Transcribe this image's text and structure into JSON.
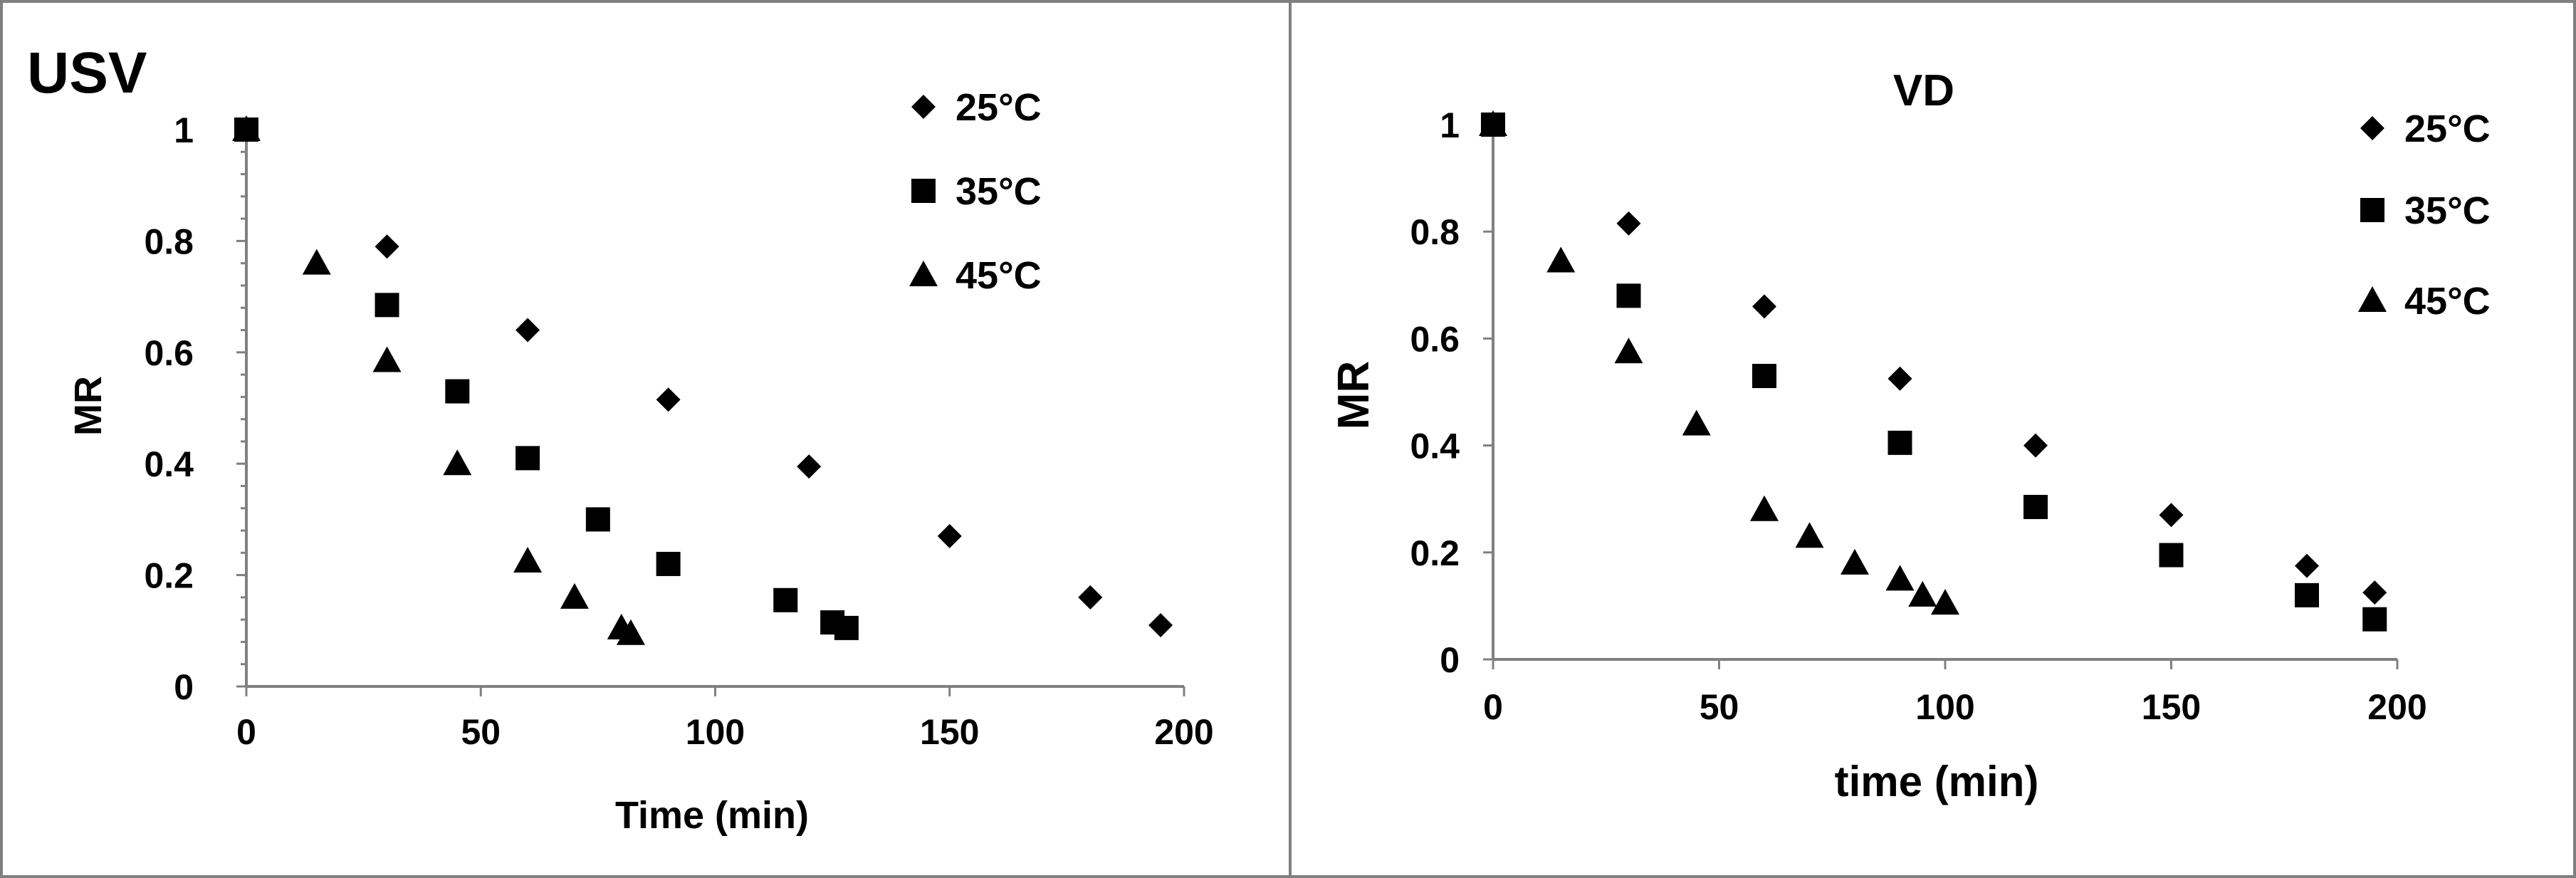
{
  "chart_data": [
    {
      "type": "scatter",
      "title": "USV",
      "xlabel": "Time (min)",
      "ylabel": "MR",
      "xlim": [
        0,
        200
      ],
      "ylim": [
        0,
        1
      ],
      "x_ticks": [
        "0",
        "50",
        "100",
        "150",
        "200"
      ],
      "y_ticks": [
        "0",
        "0.2",
        "0.4",
        "0.6",
        "0.8",
        "1"
      ],
      "grid": false,
      "legend_position": "top-right",
      "series": [
        {
          "name": "25°C",
          "marker": "diamond",
          "x": [
            0,
            30,
            60,
            90,
            120,
            150,
            180,
            195
          ],
          "y": [
            1.0,
            0.79,
            0.64,
            0.515,
            0.395,
            0.27,
            0.16,
            0.11
          ]
        },
        {
          "name": "35°C",
          "marker": "square",
          "x": [
            0,
            30,
            45,
            60,
            75,
            90,
            115,
            125,
            128
          ],
          "y": [
            1.0,
            0.685,
            0.53,
            0.41,
            0.3,
            0.22,
            0.155,
            0.115,
            0.105
          ]
        },
        {
          "name": "45°C",
          "marker": "triangle",
          "x": [
            0,
            15,
            30,
            45,
            60,
            70,
            80,
            82
          ],
          "y": [
            1.0,
            0.76,
            0.585,
            0.4,
            0.225,
            0.16,
            0.105,
            0.095
          ]
        }
      ]
    },
    {
      "type": "scatter",
      "title": "VD",
      "xlabel": "time (min)",
      "ylabel": "MR",
      "xlim": [
        0,
        200
      ],
      "ylim": [
        0,
        1
      ],
      "x_ticks": [
        "0",
        "50",
        "100",
        "150",
        "200"
      ],
      "y_ticks": [
        "0",
        "0.2",
        "0.4",
        "0.6",
        "0.8",
        "1"
      ],
      "grid": false,
      "legend_position": "top-right",
      "series": [
        {
          "name": "25°C",
          "marker": "diamond",
          "x": [
            0,
            30,
            60,
            90,
            120,
            150,
            180,
            195
          ],
          "y": [
            1.0,
            0.815,
            0.66,
            0.525,
            0.4,
            0.27,
            0.175,
            0.125
          ]
        },
        {
          "name": "35°C",
          "marker": "square",
          "x": [
            0,
            30,
            60,
            90,
            120,
            150,
            180,
            195
          ],
          "y": [
            1.0,
            0.68,
            0.53,
            0.405,
            0.285,
            0.195,
            0.12,
            0.075
          ]
        },
        {
          "name": "45°C",
          "marker": "triangle",
          "x": [
            0,
            15,
            30,
            45,
            60,
            70,
            80,
            90,
            95,
            100
          ],
          "y": [
            1.0,
            0.745,
            0.575,
            0.44,
            0.28,
            0.23,
            0.18,
            0.15,
            0.12,
            0.105
          ]
        }
      ]
    }
  ]
}
